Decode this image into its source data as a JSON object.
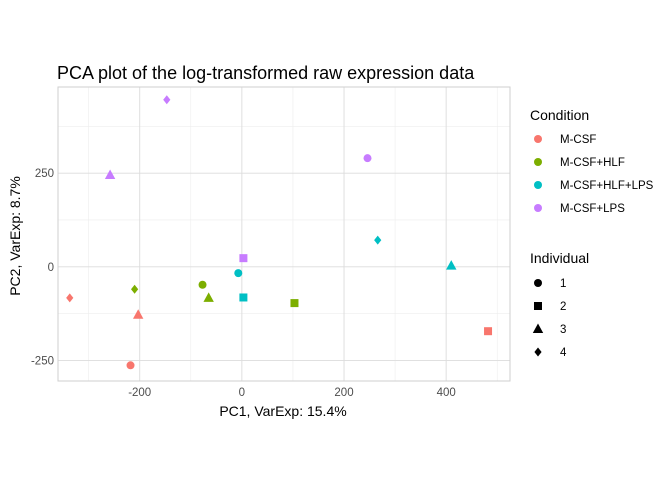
{
  "chart_data": {
    "type": "scatter",
    "title": "PCA plot of the log-transformed raw expression data",
    "xlabel": "PC1, VarExp: 15.4%",
    "ylabel": "PC2, VarExp: 8.7%",
    "xlim": [
      -360,
      525
    ],
    "ylim": [
      -305,
      480
    ],
    "x_ticks": [
      -200,
      0,
      200,
      400
    ],
    "x_tick_labels": [
      "-200",
      "0",
      "200",
      "400"
    ],
    "y_ticks": [
      -250,
      0,
      250
    ],
    "y_tick_labels": [
      "-250",
      "0",
      "250"
    ],
    "grid": true,
    "legend_position": "right",
    "legends": [
      {
        "title": "Condition",
        "entries": [
          {
            "label": "M-CSF",
            "color": "#F8766D"
          },
          {
            "label": "M-CSF+HLF",
            "color": "#7CAE00"
          },
          {
            "label": "M-CSF+HLF+LPS",
            "color": "#00BFC4"
          },
          {
            "label": "M-CSF+LPS",
            "color": "#C77CFF"
          }
        ]
      },
      {
        "title": "Individual",
        "entries": [
          {
            "label": "1",
            "shape": "circle"
          },
          {
            "label": "2",
            "shape": "square"
          },
          {
            "label": "3",
            "shape": "triangle"
          },
          {
            "label": "4",
            "shape": "diamond"
          }
        ]
      }
    ],
    "points": [
      {
        "x": -218,
        "y": -263,
        "condition": "M-CSF",
        "individual": "1"
      },
      {
        "x": 482,
        "y": -172,
        "condition": "M-CSF",
        "individual": "2"
      },
      {
        "x": -203,
        "y": -128,
        "condition": "M-CSF",
        "individual": "3"
      },
      {
        "x": -337,
        "y": -83,
        "condition": "M-CSF",
        "individual": "4"
      },
      {
        "x": -77,
        "y": -48,
        "condition": "M-CSF+HLF",
        "individual": "1"
      },
      {
        "x": 103,
        "y": -97,
        "condition": "M-CSF+HLF",
        "individual": "2"
      },
      {
        "x": -65,
        "y": -83,
        "condition": "M-CSF+HLF",
        "individual": "3"
      },
      {
        "x": -210,
        "y": -60,
        "condition": "M-CSF+HLF",
        "individual": "4"
      },
      {
        "x": -7,
        "y": -17,
        "condition": "M-CSF+HLF+LPS",
        "individual": "1"
      },
      {
        "x": 3,
        "y": -82,
        "condition": "M-CSF+HLF+LPS",
        "individual": "2"
      },
      {
        "x": 410,
        "y": 3,
        "condition": "M-CSF+HLF+LPS",
        "individual": "3"
      },
      {
        "x": 266,
        "y": 71,
        "condition": "M-CSF+HLF+LPS",
        "individual": "4"
      },
      {
        "x": 246,
        "y": 290,
        "condition": "M-CSF+LPS",
        "individual": "1"
      },
      {
        "x": 3,
        "y": 23,
        "condition": "M-CSF+LPS",
        "individual": "2"
      },
      {
        "x": -258,
        "y": 245,
        "condition": "M-CSF+LPS",
        "individual": "3"
      },
      {
        "x": -147,
        "y": 446,
        "condition": "M-CSF+LPS",
        "individual": "4"
      }
    ]
  }
}
